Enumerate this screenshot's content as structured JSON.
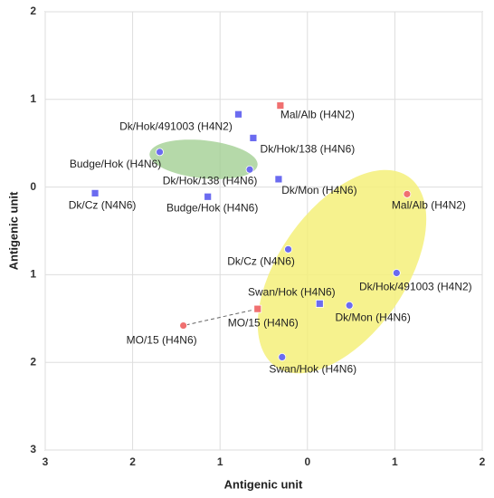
{
  "chart_data": {
    "type": "scatter",
    "xlabel": "Antigenic unit",
    "ylabel": "Antigenic unit",
    "xlim": [
      -3,
      2
    ],
    "ylim": [
      -3,
      2
    ],
    "xticks": [
      {
        "value": -3,
        "label": "3"
      },
      {
        "value": -2,
        "label": "2"
      },
      {
        "value": -1,
        "label": "1"
      },
      0,
      1,
      2
    ],
    "yticks": [
      {
        "value": -3,
        "label": "3"
      },
      {
        "value": -2,
        "label": "2"
      },
      {
        "value": -1,
        "label": "1"
      },
      0,
      1,
      2
    ],
    "grid": true,
    "points": [
      {
        "label": "Dk/Hok/491003 (H4N2)",
        "x": -0.79,
        "y": 0.83,
        "marker": "square",
        "color": "#6b6bf0"
      },
      {
        "label": "Dk/Hok/138 (H4N6)",
        "x": -0.62,
        "y": 0.56,
        "marker": "square",
        "color": "#6b6bf0"
      },
      {
        "label": "Dk/Mon (H4N6)",
        "x": -0.33,
        "y": 0.09,
        "marker": "square",
        "color": "#6b6bf0"
      },
      {
        "label": "Budge/Hok (H4N6)",
        "x": -1.14,
        "y": -0.11,
        "marker": "square",
        "color": "#6b6bf0"
      },
      {
        "label": "Dk/Cz (N4N6)",
        "x": -2.43,
        "y": -0.07,
        "marker": "square",
        "color": "#6b6bf0"
      },
      {
        "label": "Swan/Hok (H4N6)",
        "x": 0.14,
        "y": -1.33,
        "marker": "square",
        "color": "#6b6bf0"
      },
      {
        "label": "Mal/Alb (H4N2)",
        "x": -0.31,
        "y": 0.93,
        "marker": "square",
        "color": "#f07070"
      },
      {
        "label": "MO/15 (H4N6)",
        "x": -0.57,
        "y": -1.39,
        "marker": "square",
        "color": "#f07070"
      },
      {
        "label": "Budge/Hok (H4N6)",
        "x": -1.69,
        "y": 0.4,
        "marker": "circle",
        "color": "#6b6bf0"
      },
      {
        "label": "Dk/Hok/138 (H4N6)",
        "x": -0.66,
        "y": 0.2,
        "marker": "circle",
        "color": "#6b6bf0"
      },
      {
        "label": "Dk/Cz (N4N6)",
        "x": -0.22,
        "y": -0.71,
        "marker": "circle",
        "color": "#6b6bf0"
      },
      {
        "label": "Dk/Hok/491003 (H4N2)",
        "x": 1.02,
        "y": -0.98,
        "marker": "circle",
        "color": "#6b6bf0"
      },
      {
        "label": "Dk/Mon (H4N6)",
        "x": 0.48,
        "y": -1.35,
        "marker": "circle",
        "color": "#6b6bf0"
      },
      {
        "label": "Swan/Hok (H4N6)",
        "x": -0.29,
        "y": -1.94,
        "marker": "circle",
        "color": "#6b6bf0"
      },
      {
        "label": "Mal/Alb (H4N2)",
        "x": 1.14,
        "y": -0.08,
        "marker": "circle",
        "color": "#f07070"
      },
      {
        "label": "MO/15 (H4N6)",
        "x": -1.42,
        "y": -1.58,
        "marker": "circle",
        "color": "#f07070"
      }
    ]
  }
}
